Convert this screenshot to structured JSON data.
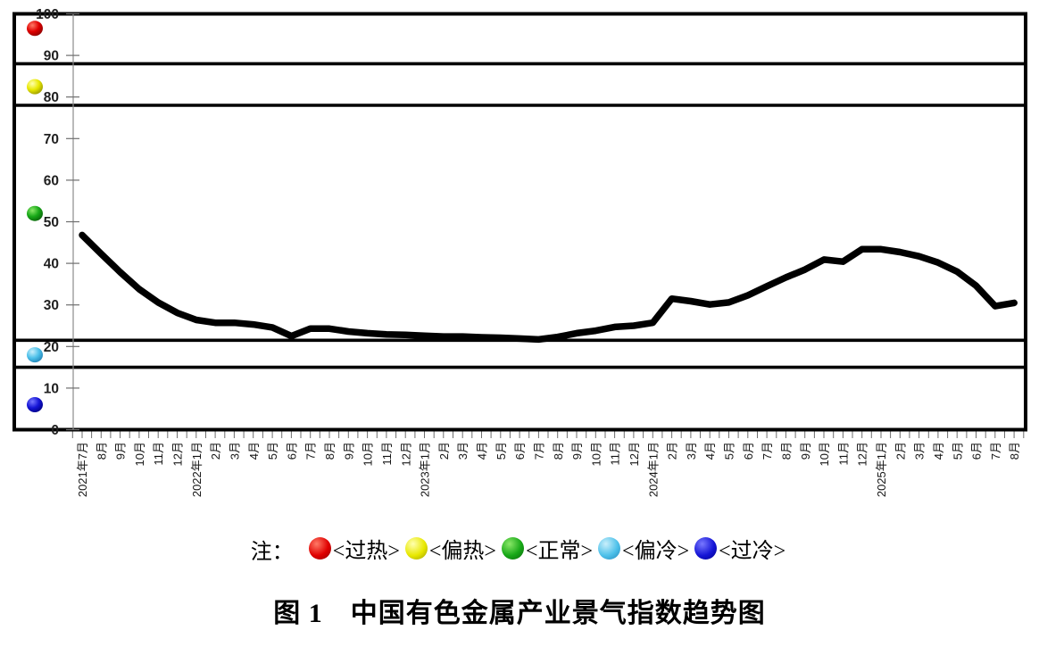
{
  "figure": {
    "caption": "图 1　中国有色金属产业景气指数趋势图"
  },
  "note": {
    "prefix": "注：",
    "items": [
      {
        "label": "<过热>"
      },
      {
        "label": "<偏热>"
      },
      {
        "label": "<正常>"
      },
      {
        "label": "<偏冷>"
      },
      {
        "label": "<过冷>"
      }
    ]
  },
  "chart_data": {
    "type": "line",
    "title": "中国有色金属产业景气指数趋势图",
    "xlabel": "",
    "ylabel": "",
    "ylim": [
      0,
      100
    ],
    "y_ticks": [
      0,
      10,
      20,
      30,
      40,
      50,
      60,
      70,
      80,
      90,
      100
    ],
    "grid": false,
    "line_color": "#000000",
    "zone_boundary_values": [
      88,
      78,
      21.5,
      15
    ],
    "zones": [
      {
        "label": "过热",
        "marker_value": 96.5,
        "color": "#e00000",
        "color_hi": "#ff7a66",
        "color_lo": "#8f0000"
      },
      {
        "label": "偏热",
        "marker_value": 82.5,
        "color": "#e8e800",
        "color_hi": "#ffffb0",
        "color_lo": "#9c9c00"
      },
      {
        "label": "正常",
        "marker_value": 52,
        "color": "#17a817",
        "color_hi": "#8ae868",
        "color_lo": "#0a660a"
      },
      {
        "label": "偏冷",
        "marker_value": 18,
        "color": "#4ec1ea",
        "color_hi": "#c9effb",
        "color_lo": "#2387ba"
      },
      {
        "label": "过冷",
        "marker_value": 6,
        "color": "#1515d6",
        "color_hi": "#7878ff",
        "color_lo": "#000089"
      }
    ],
    "x_labels": [
      "2021年7月",
      "8月",
      "9月",
      "10月",
      "11月",
      "12月",
      "2022年1月",
      "2月",
      "3月",
      "4月",
      "5月",
      "6月",
      "7月",
      "8月",
      "9月",
      "10月",
      "11月",
      "12月",
      "2023年1月",
      "2月",
      "3月",
      "4月",
      "5月",
      "6月",
      "7月",
      "8月",
      "9月",
      "10月",
      "11月",
      "12月",
      "2024年1月",
      "2月",
      "3月",
      "4月",
      "5月",
      "6月",
      "7月",
      "8月",
      "9月",
      "10月",
      "11月",
      "12月",
      "2025年1月",
      "2月",
      "3月",
      "4月",
      "5月",
      "6月",
      "7月",
      "8月"
    ],
    "series": [
      {
        "name": "中国有色金属产业景气指数",
        "values": [
          46.8,
          42.3,
          37.9,
          33.8,
          30.6,
          28.1,
          26.4,
          25.7,
          25.7,
          25.3,
          24.6,
          22.5,
          24.3,
          24.3,
          23.6,
          23.2,
          22.9,
          22.8,
          22.6,
          22.4,
          22.4,
          22.2,
          22.1,
          21.9,
          21.7,
          22.3,
          23.2,
          23.8,
          24.7,
          25.0,
          25.7,
          31.5,
          30.9,
          30.1,
          30.6,
          32.3,
          34.5,
          36.6,
          38.5,
          40.9,
          40.4,
          43.4,
          43.4,
          42.7,
          41.7,
          40.2,
          38.0,
          34.6,
          29.7,
          30.5
        ]
      }
    ],
    "legend_position": "bottom"
  }
}
